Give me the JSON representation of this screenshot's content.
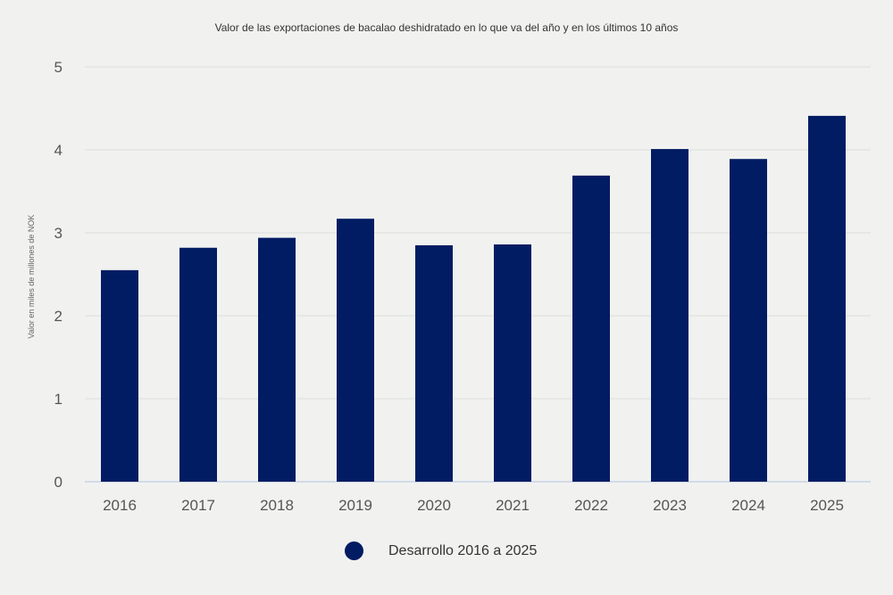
{
  "chart_data": {
    "type": "bar",
    "title": "Valor de las exportaciones de bacalao deshidratado en lo que va del año y en los últimos 10 años",
    "xlabel": "",
    "ylabel": "Valor en miles de millones de NOK",
    "categories": [
      "2016",
      "2017",
      "2018",
      "2019",
      "2020",
      "2021",
      "2022",
      "2023",
      "2024",
      "2025"
    ],
    "series": [
      {
        "name": "Desarrollo 2016 a 2025",
        "color": "#021c63",
        "values": [
          2.55,
          2.82,
          2.94,
          3.17,
          2.85,
          2.86,
          3.69,
          4.01,
          3.89,
          4.41
        ]
      }
    ],
    "ylim": [
      0,
      5
    ],
    "yticks": [
      "0",
      "1",
      "2",
      "3",
      "4",
      "5"
    ],
    "grid": true,
    "legend_position": "bottom-center"
  }
}
